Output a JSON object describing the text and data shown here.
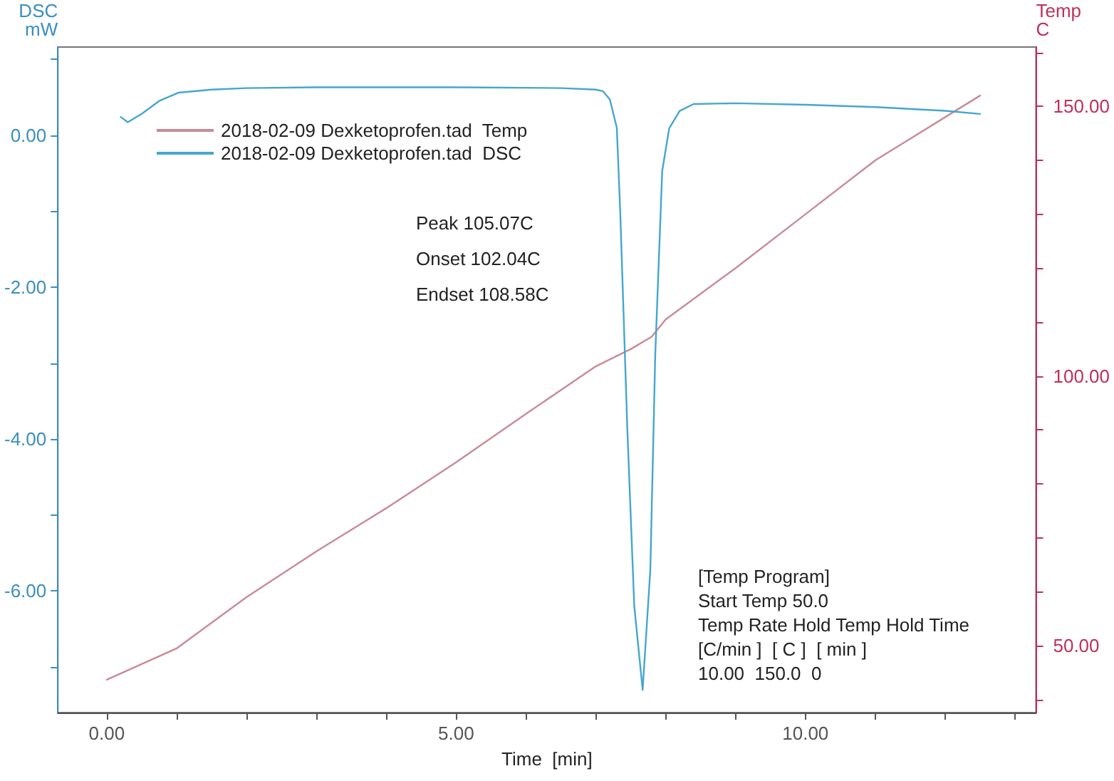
{
  "chart_data": {
    "type": "line",
    "xlabel": "Time  [min]",
    "ylabel": "DSC\nmW",
    "y2label": "Temp\nC",
    "xlim": [
      -0.7,
      13.3
    ],
    "xticks": [
      {
        "value": 0,
        "label": "0.00"
      },
      {
        "value": 1,
        "label": null
      },
      {
        "value": 2,
        "label": null
      },
      {
        "value": 3,
        "label": null
      },
      {
        "value": 4,
        "label": null
      },
      {
        "value": 5,
        "label": "5.00"
      },
      {
        "value": 6,
        "label": null
      },
      {
        "value": 7,
        "label": null
      },
      {
        "value": 8,
        "label": null
      },
      {
        "value": 9,
        "label": null
      },
      {
        "value": 10,
        "label": "10.00"
      },
      {
        "value": 11,
        "label": null
      },
      {
        "value": 12,
        "label": null
      },
      {
        "value": 13,
        "label": null
      }
    ],
    "ylim": [
      -7.6,
      1.16
    ],
    "yticks": [
      {
        "value": -7,
        "label": null
      },
      {
        "value": -6,
        "label": "-6.00"
      },
      {
        "value": -5,
        "label": null
      },
      {
        "value": -4,
        "label": "-4.00"
      },
      {
        "value": -3,
        "label": null
      },
      {
        "value": -2,
        "label": "-2.00"
      },
      {
        "value": -1,
        "label": null
      },
      {
        "value": 0,
        "label": "0.00"
      },
      {
        "value": 1,
        "label": null
      }
    ],
    "y2lim": [
      37.6,
      161
    ],
    "y2ticks": [
      {
        "value": 40,
        "label": null
      },
      {
        "value": 50,
        "label": "50.00"
      },
      {
        "value": 60,
        "label": null
      },
      {
        "value": 70,
        "label": null
      },
      {
        "value": 80,
        "label": null
      },
      {
        "value": 90,
        "label": null
      },
      {
        "value": 100,
        "label": "100.00"
      },
      {
        "value": 110,
        "label": null
      },
      {
        "value": 120,
        "label": null
      },
      {
        "value": 130,
        "label": null
      },
      {
        "value": 140,
        "label": null
      },
      {
        "value": 150,
        "label": "150.00"
      },
      {
        "value": 160,
        "label": null
      }
    ],
    "grid": false,
    "legend": "top",
    "marker": "none",
    "line_style": "solid",
    "series": [
      {
        "name": "2018-02-09 Dexketoprofen.tad  Temp",
        "color": "#c98a98",
        "axis": "y2",
        "x": [
          0,
          1,
          2,
          3,
          4,
          5,
          6,
          7,
          7.5,
          7.8,
          8,
          9,
          10,
          11,
          12,
          12.5
        ],
        "values": [
          43.7,
          49.5,
          59,
          67.5,
          75.5,
          84,
          93,
          101.8,
          105,
          107.3,
          110.5,
          120,
          130,
          140,
          148,
          152
        ]
      },
      {
        "name": "2018-02-09 Dexketoprofen.tad  DSC",
        "color": "#45a6cf",
        "axis": "y",
        "x": [
          0.2,
          0.3,
          0.5,
          0.75,
          1.03,
          1.5,
          2,
          3,
          5,
          6.5,
          7,
          7.1,
          7.2,
          7.3,
          7.35,
          7.45,
          7.55,
          7.67,
          7.78,
          7.85,
          7.95,
          8.05,
          8.2,
          8.4,
          9,
          10,
          11,
          12,
          12.5
        ],
        "values": [
          0.24,
          0.17,
          0.28,
          0.45,
          0.56,
          0.6,
          0.62,
          0.63,
          0.63,
          0.62,
          0.6,
          0.58,
          0.47,
          0.1,
          -1.03,
          -3.85,
          -6.2,
          -7.3,
          -5.72,
          -2.9,
          -0.47,
          0.09,
          0.32,
          0.41,
          0.42,
          0.4,
          0.37,
          0.32,
          0.28
        ]
      }
    ],
    "annotations": [
      "Peak 105.07C",
      "Onset 102.04C",
      "Endset 108.58C",
      "[Temp Program]",
      "Start Temp 50.0",
      "Temp Rate Hold Temp Hold Time",
      "[C/min ]  [ C ]  [ min ]",
      "10.00  150.0  0"
    ]
  }
}
